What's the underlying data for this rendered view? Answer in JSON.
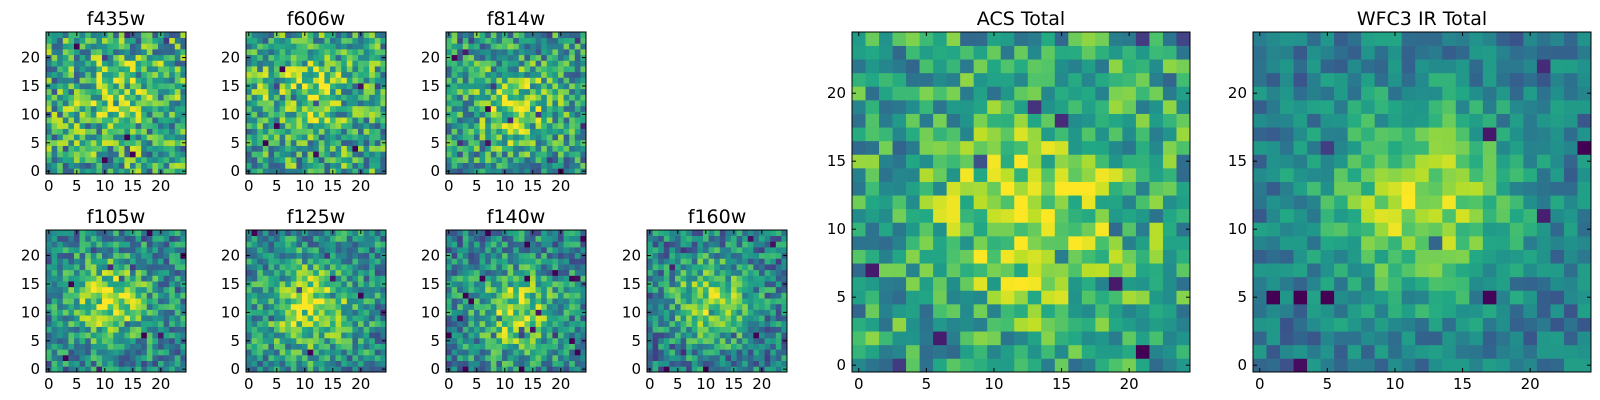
{
  "figure": {
    "description_note": "Grid of 9 heatmap thumbnails, 25x25 pixels each, viridis colormap"
  },
  "chart_data": [
    {
      "type": "heatmap",
      "title": "f435w",
      "xticks": [
        0,
        5,
        10,
        15,
        20
      ],
      "yticks": [
        0,
        5,
        10,
        15,
        20
      ],
      "xlim": [
        0,
        25
      ],
      "ylim": [
        0,
        25
      ],
      "grid_size": [
        25,
        25
      ],
      "colormap": "viridis",
      "peak": [
        13,
        13
      ],
      "peak_strength": 0.18,
      "noise": 0.34,
      "base": 0.58,
      "seed": 11
    },
    {
      "type": "heatmap",
      "title": "f606w",
      "xticks": [
        0,
        5,
        10,
        15,
        20
      ],
      "yticks": [
        0,
        5,
        10,
        15,
        20
      ],
      "xlim": [
        0,
        25
      ],
      "ylim": [
        0,
        25
      ],
      "grid_size": [
        25,
        25
      ],
      "colormap": "viridis",
      "peak": [
        10,
        14
      ],
      "peak_strength": 0.22,
      "noise": 0.32,
      "base": 0.58,
      "seed": 23
    },
    {
      "type": "heatmap",
      "title": "f814w",
      "xticks": [
        0,
        5,
        10,
        15,
        20
      ],
      "yticks": [
        0,
        5,
        10,
        15,
        20
      ],
      "xlim": [
        0,
        25
      ],
      "ylim": [
        0,
        25
      ],
      "grid_size": [
        25,
        25
      ],
      "colormap": "viridis",
      "peak": [
        12,
        11
      ],
      "peak_strength": 0.32,
      "noise": 0.3,
      "base": 0.52,
      "seed": 37
    },
    {
      "type": "heatmap",
      "title": "f105w",
      "xticks": [
        0,
        5,
        10,
        15,
        20
      ],
      "yticks": [
        0,
        5,
        10,
        15,
        20
      ],
      "xlim": [
        0,
        25
      ],
      "ylim": [
        0,
        25
      ],
      "grid_size": [
        25,
        25
      ],
      "colormap": "viridis",
      "peak": [
        11,
        12
      ],
      "peak_strength": 0.42,
      "noise": 0.26,
      "base": 0.45,
      "seed": 41
    },
    {
      "type": "heatmap",
      "title": "f125w",
      "xticks": [
        0,
        5,
        10,
        15,
        20
      ],
      "yticks": [
        0,
        5,
        10,
        15,
        20
      ],
      "xlim": [
        0,
        25
      ],
      "ylim": [
        0,
        25
      ],
      "grid_size": [
        25,
        25
      ],
      "colormap": "viridis",
      "peak": [
        11,
        11
      ],
      "peak_strength": 0.42,
      "noise": 0.26,
      "base": 0.48,
      "seed": 53
    },
    {
      "type": "heatmap",
      "title": "f140w",
      "xticks": [
        0,
        5,
        10,
        15,
        20
      ],
      "yticks": [
        0,
        5,
        10,
        15,
        20
      ],
      "xlim": [
        0,
        25
      ],
      "ylim": [
        0,
        25
      ],
      "grid_size": [
        25,
        25
      ],
      "colormap": "viridis",
      "peak": [
        12,
        10
      ],
      "peak_strength": 0.4,
      "noise": 0.26,
      "base": 0.45,
      "seed": 67
    },
    {
      "type": "heatmap",
      "title": "f160w",
      "xticks": [
        0,
        5,
        10,
        15,
        20
      ],
      "yticks": [
        0,
        5,
        10,
        15,
        20
      ],
      "xlim": [
        0,
        25
      ],
      "ylim": [
        0,
        25
      ],
      "grid_size": [
        25,
        25
      ],
      "colormap": "viridis",
      "peak": [
        11,
        12
      ],
      "peak_strength": 0.42,
      "noise": 0.26,
      "base": 0.42,
      "seed": 79
    },
    {
      "type": "heatmap",
      "title": "ACS Total",
      "xticks": [
        0,
        5,
        10,
        15,
        20
      ],
      "yticks": [
        0,
        5,
        10,
        15,
        20
      ],
      "xlim": [
        0,
        25
      ],
      "ylim": [
        0,
        25
      ],
      "grid_size": [
        25,
        25
      ],
      "colormap": "viridis",
      "peak": [
        13,
        11
      ],
      "peak_strength": 0.3,
      "noise": 0.26,
      "base": 0.58,
      "seed": 91
    },
    {
      "type": "heatmap",
      "title": "WFC3 IR Total",
      "xticks": [
        0,
        5,
        10,
        15,
        20
      ],
      "yticks": [
        0,
        5,
        10,
        15,
        20
      ],
      "xlim": [
        0,
        25
      ],
      "ylim": [
        0,
        25
      ],
      "grid_size": [
        25,
        25
      ],
      "colormap": "viridis",
      "peak": [
        12,
        12
      ],
      "peak_strength": 0.5,
      "noise": 0.16,
      "base": 0.4,
      "seed": 103
    }
  ]
}
